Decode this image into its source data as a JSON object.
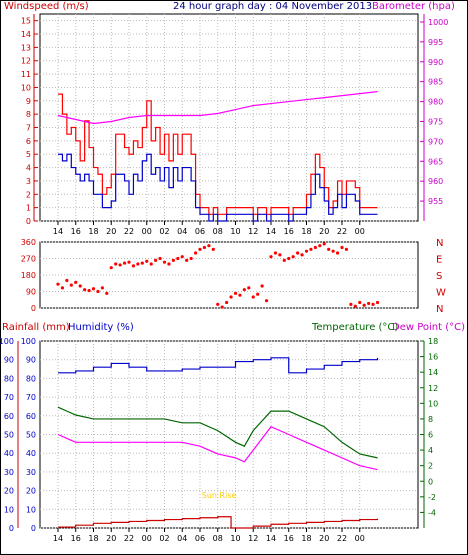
{
  "chart_data": [
    {
      "type": "line",
      "title": "24 hour graph day : 04 November 2013",
      "ylabel": "Windspeed (m/s)",
      "y2label": "Barometer (hpa)",
      "ylim": [
        0,
        15.5
      ],
      "y2lim": [
        950,
        1002
      ],
      "yticks": [
        0,
        1,
        2,
        3,
        4,
        5,
        6,
        7,
        8,
        9,
        10,
        11,
        12,
        13,
        14,
        15
      ],
      "y2ticks": [
        955,
        960,
        965,
        970,
        975,
        980,
        985,
        990,
        995,
        1000
      ],
      "xticks": [
        "14",
        "16",
        "18",
        "20",
        "22",
        "00",
        "02",
        "04",
        "06",
        "08",
        "10",
        "12",
        "14",
        "16",
        "18",
        "20",
        "22",
        "00"
      ],
      "colors": {
        "gust": "#ff0000",
        "average": "#0000cc",
        "barometer": "#ff00ff"
      },
      "series": [
        {
          "key": "gust",
          "axis": "left",
          "x": [
            0,
            0.5,
            1,
            1.5,
            2,
            2.5,
            3,
            3.5,
            4,
            4.5,
            5,
            5.5,
            6,
            6.5,
            7,
            7.5,
            8,
            8.5,
            9,
            9.5,
            10,
            10.5,
            11,
            11.5,
            12,
            12.5,
            13,
            13.5,
            14,
            14.5,
            15,
            15.5,
            16,
            16.5,
            17,
            17.5,
            18,
            18.5,
            19,
            19.5,
            20,
            20.5,
            21,
            21.5,
            22,
            22.5,
            23,
            23.5,
            24,
            24.5,
            25,
            25.5,
            26,
            26.5,
            27,
            27.5,
            28,
            28.5,
            29,
            29.5,
            30,
            30.5,
            31,
            31.5,
            32,
            32.5,
            33,
            33.5,
            34,
            34.5,
            35,
            35.5,
            36
          ],
          "values": [
            9.5,
            8,
            6.5,
            7,
            6,
            4.5,
            7.5,
            5.5,
            4,
            3.5,
            2,
            2.5,
            3.5,
            6.5,
            6.5,
            5.5,
            5,
            6,
            5.5,
            7,
            9,
            6,
            7,
            5,
            6.5,
            4.5,
            6.5,
            5,
            6.5,
            6.5,
            5,
            2,
            1,
            1,
            0.5,
            1,
            0.5,
            0.5,
            1,
            1,
            1,
            1,
            1,
            1,
            0.5,
            1,
            1,
            0.5,
            1,
            1,
            1,
            1,
            0.5,
            1,
            1,
            1,
            2,
            3.5,
            5,
            4,
            2.5,
            1,
            1.5,
            3,
            2,
            3,
            3,
            2.5,
            1,
            1,
            1,
            1,
            1
          ]
        },
        {
          "key": "average",
          "axis": "left",
          "x": [
            0,
            0.5,
            1,
            1.5,
            2,
            2.5,
            3,
            3.5,
            4,
            4.5,
            5,
            5.5,
            6,
            6.5,
            7,
            7.5,
            8,
            8.5,
            9,
            9.5,
            10,
            10.5,
            11,
            11.5,
            12,
            12.5,
            13,
            13.5,
            14,
            14.5,
            15,
            15.5,
            16,
            16.5,
            17,
            17.5,
            18,
            18.5,
            19,
            19.5,
            20,
            20.5,
            21,
            21.5,
            22,
            22.5,
            23,
            23.5,
            24,
            24.5,
            25,
            25.5,
            26,
            26.5,
            27,
            27.5,
            28,
            28.5,
            29,
            29.5,
            30,
            30.5,
            31,
            31.5,
            32,
            32.5,
            33,
            33.5,
            34,
            34.5,
            35,
            35.5,
            36
          ],
          "values": [
            5,
            4.5,
            5,
            4,
            3.5,
            3,
            3.5,
            3,
            2,
            2,
            1,
            1,
            1.5,
            3.5,
            3.5,
            3,
            2,
            3.5,
            3,
            4.5,
            5,
            3.5,
            4,
            3,
            4,
            2.5,
            4,
            3,
            4,
            4,
            3,
            1,
            0.5,
            0.5,
            0,
            0.5,
            0,
            0,
            0.5,
            0.5,
            0.5,
            0.5,
            0.5,
            0.5,
            0,
            0.5,
            0.5,
            0,
            0.5,
            0.5,
            0.5,
            0.5,
            0,
            0.5,
            0.5,
            0.5,
            1,
            2,
            3.5,
            2.5,
            1.5,
            0.5,
            1,
            2,
            1,
            2,
            2,
            1.5,
            0.5,
            0.5,
            0.5,
            0.5,
            0.5
          ]
        },
        {
          "key": "barometer",
          "axis": "right",
          "x": [
            0,
            2,
            4,
            6,
            8,
            10,
            12,
            14,
            16,
            18,
            20,
            22,
            24,
            26,
            28,
            30,
            32,
            34,
            36
          ],
          "values": [
            976.5,
            975.5,
            974.5,
            975,
            976,
            976.5,
            976.5,
            976.5,
            976.5,
            977,
            978,
            979,
            979.5,
            980,
            980.5,
            981,
            981.5,
            982,
            982.5
          ]
        }
      ]
    },
    {
      "type": "scatter",
      "ylabel": "",
      "ylim": [
        0,
        360
      ],
      "yticks": [
        0,
        90,
        180,
        270,
        360
      ],
      "compass": [
        "N",
        "W",
        "S",
        "E",
        "N"
      ],
      "colors": {
        "direction": "#ff0000"
      },
      "x": [
        0,
        0.5,
        1,
        1.5,
        2,
        2.5,
        3,
        3.5,
        4,
        4.5,
        5,
        5.5,
        6,
        6.5,
        7,
        7.5,
        8,
        8.5,
        9,
        9.5,
        10,
        10.5,
        11,
        11.5,
        12,
        12.5,
        13,
        13.5,
        14,
        14.5,
        15,
        15.5,
        16,
        16.5,
        17,
        17.5,
        18,
        18.5,
        19,
        19.5,
        20,
        20.5,
        21,
        21.5,
        22,
        22.5,
        23,
        23.5,
        24,
        24.5,
        25,
        25.5,
        26,
        26.5,
        27,
        27.5,
        28,
        28.5,
        29,
        29.5,
        30,
        30.5,
        31,
        31.5,
        32,
        32.5,
        33,
        33.5,
        34,
        34.5,
        35,
        35.5,
        36
      ],
      "values": [
        130,
        110,
        150,
        125,
        140,
        120,
        100,
        95,
        105,
        90,
        110,
        80,
        220,
        240,
        235,
        245,
        250,
        230,
        240,
        245,
        255,
        240,
        260,
        270,
        250,
        240,
        260,
        270,
        280,
        260,
        270,
        300,
        320,
        330,
        340,
        320,
        20,
        5,
        30,
        60,
        80,
        70,
        100,
        110,
        60,
        75,
        120,
        40,
        280,
        300,
        290,
        260,
        270,
        280,
        300,
        290,
        310,
        320,
        330,
        340,
        350,
        320,
        310,
        300,
        330,
        320,
        20,
        10,
        30,
        15,
        25,
        20,
        30
      ]
    },
    {
      "type": "line",
      "ylabel": "Rainfall (mm)",
      "ylabel2": "Humidity (%)",
      "y3label": "Temperature (°C)",
      "y4label": "Dew Point (°C)",
      "ylim": [
        0,
        100
      ],
      "y2lim": [
        -6,
        18
      ],
      "yticks": [
        0,
        10,
        20,
        30,
        40,
        50,
        60,
        70,
        80,
        90,
        100
      ],
      "y2ticks": [
        -4,
        -2,
        0,
        2,
        4,
        6,
        8,
        10,
        12,
        14,
        16,
        18
      ],
      "annotation": "Sun Rise",
      "colors": {
        "rainfall": "#cc0000",
        "humidity": "#0000cc",
        "temperature": "#006600",
        "dewpoint": "#ff00ff",
        "annotation": "#ffcc00"
      },
      "series": [
        {
          "key": "humidity",
          "axis": "left",
          "x": [
            0,
            2,
            4,
            6,
            8,
            10,
            12,
            14,
            16,
            18,
            20,
            22,
            24,
            26,
            28,
            30,
            32,
            34,
            36
          ],
          "values": [
            83,
            84,
            86,
            88,
            86,
            84,
            84,
            85,
            86,
            86,
            89,
            90,
            91,
            83,
            85,
            87,
            89,
            90,
            91
          ]
        },
        {
          "key": "temperature",
          "axis": "right",
          "x": [
            0,
            1,
            2,
            4,
            6,
            8,
            10,
            12,
            14,
            16,
            18,
            20,
            21,
            22,
            24,
            26,
            28,
            30,
            32,
            34,
            36
          ],
          "values": [
            9.5,
            9,
            8.5,
            8,
            8,
            8,
            8,
            8,
            7.5,
            7.5,
            6.5,
            5,
            4.5,
            6.5,
            9,
            9,
            8,
            7,
            5,
            3.5,
            3
          ]
        },
        {
          "key": "dewpoint",
          "axis": "right",
          "x": [
            0,
            1,
            2,
            4,
            6,
            8,
            10,
            12,
            14,
            16,
            18,
            20,
            21,
            22,
            24,
            26,
            28,
            30,
            32,
            34,
            36
          ],
          "values": [
            6,
            5.5,
            5,
            5,
            5,
            5,
            5,
            5,
            5,
            4.5,
            3.5,
            3,
            2.5,
            4,
            7,
            6,
            5,
            4,
            3,
            2,
            1.5
          ]
        },
        {
          "key": "rainfall",
          "axis": "left",
          "x": [
            0,
            2,
            4,
            6,
            8,
            10,
            12,
            14,
            16,
            18,
            19,
            19.5,
            22,
            24,
            26,
            28,
            30,
            32,
            34,
            36
          ],
          "values": [
            0.5,
            1.5,
            2.5,
            3,
            3.5,
            4,
            4.5,
            5,
            5.5,
            6,
            6,
            0,
            1,
            2,
            2.5,
            3,
            3.5,
            4,
            4.5,
            5
          ]
        }
      ],
      "sunrise_x": 19.5
    }
  ]
}
